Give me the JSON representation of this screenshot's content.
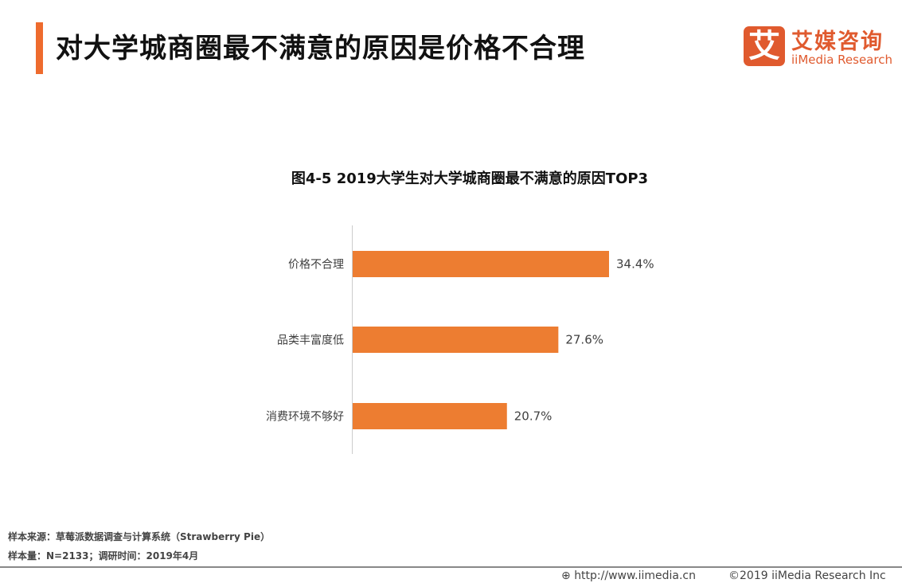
{
  "header": {
    "title": "对大学城商圈最不满意的原因是价格不合理",
    "logo_char": "艾",
    "brand_cn": "艾媒咨询",
    "brand_en": "iiMedia Research",
    "accent_color": "#ee6b2d"
  },
  "chart_data": {
    "type": "bar",
    "orientation": "horizontal",
    "title": "图4-5 2019大学生对大学城商圈最不满意的原因TOP3",
    "categories": [
      "价格不合理",
      "品类丰富度低",
      "消费环境不够好"
    ],
    "values": [
      34.4,
      27.6,
      20.7
    ],
    "data_labels": [
      "34.4%",
      "27.6%",
      "20.7%"
    ],
    "unit": "%",
    "bar_color": "#ed7d31",
    "grid": false
  },
  "footer": {
    "source": "样本来源：草莓派数据调查与计算系统（Strawberry Pie）",
    "sample": "样本量：N=2133；调研时间：2019年4月",
    "url": "http://www.iimedia.cn",
    "copyright": "©2019  iiMedia Research  Inc"
  }
}
